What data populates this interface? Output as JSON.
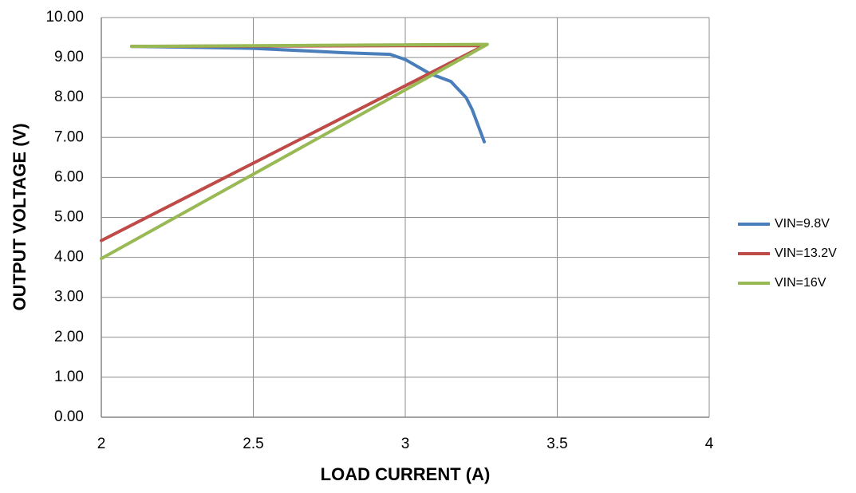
{
  "chart_data": {
    "type": "line",
    "x_label": "LOAD CURRENT (A)",
    "y_label": "OUTPUT VOLTAGE (V)",
    "xlim": [
      2,
      4
    ],
    "xticks": [
      2,
      2.5,
      3,
      3.5,
      4
    ],
    "ylim": [
      0,
      10
    ],
    "yticks": [
      {
        "value": 0,
        "label": "0.00"
      },
      {
        "value": 1,
        "label": "1.00"
      },
      {
        "value": 2,
        "label": "2.00"
      },
      {
        "value": 3,
        "label": "3.00"
      },
      {
        "value": 4,
        "label": "4.00"
      },
      {
        "value": 5,
        "label": "5.00"
      },
      {
        "value": 6,
        "label": "6.00"
      },
      {
        "value": 7,
        "label": "7.00"
      },
      {
        "value": 8,
        "label": "8.00"
      },
      {
        "value": 9,
        "label": "9.00"
      },
      {
        "value": 10,
        "label": "10.00"
      }
    ],
    "grid": true,
    "legend_position": "right",
    "series": [
      {
        "name": "VIN=9.8V",
        "color": "#4a7ebb",
        "x": [
          2.1,
          2.5,
          2.8,
          2.95,
          3.0,
          3.08,
          3.15,
          3.2,
          3.22,
          3.26
        ],
        "values": [
          9.28,
          9.23,
          9.12,
          9.08,
          8.95,
          8.6,
          8.4,
          8.0,
          7.7,
          6.89
        ]
      },
      {
        "name": "VIN=13.2V",
        "color": "#be4b48",
        "x": [
          2.1,
          3.26,
          2.0
        ],
        "values": [
          9.28,
          9.3,
          4.42
        ]
      },
      {
        "name": "VIN=16V",
        "color": "#98b954",
        "x": [
          2.1,
          3.27,
          2.0
        ],
        "values": [
          9.28,
          9.33,
          3.97
        ]
      }
    ]
  }
}
